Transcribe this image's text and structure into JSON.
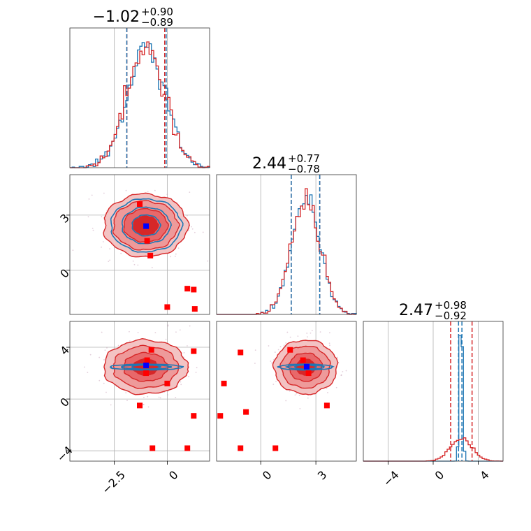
{
  "chart_data": [
    {
      "panel": "hist-param-1",
      "type": "histogram",
      "title": {
        "median": "−1.02",
        "plus": "+0.90",
        "minus": "−0.89"
      },
      "xlim": [
        -4.6,
        2.0
      ],
      "xticks": [
        -2.5,
        0.0
      ],
      "quantile_lines": {
        "red": [
          -1.91,
          -0.12
        ],
        "blue": [
          -1.91,
          -0.05
        ]
      },
      "series": [
        {
          "name": "",
          "color": "#1f77b4",
          "center": -1.0,
          "sigma": 0.9
        },
        {
          "name": "",
          "color": "#d62728",
          "center": -1.02,
          "sigma": 0.89
        }
      ],
      "grid": true
    },
    {
      "panel": "hist-param-2",
      "type": "histogram",
      "title": {
        "median": "2.44",
        "plus": "+0.77",
        "minus": "−0.78"
      },
      "xlim": [
        -2.4,
        5.2
      ],
      "xticks": [
        0,
        3
      ],
      "quantile_lines": {
        "red": [
          1.66,
          3.21
        ],
        "blue": [
          1.66,
          3.21
        ]
      },
      "series": [
        {
          "name": "",
          "color": "#1f77b4",
          "center": 2.44,
          "sigma": 0.77
        },
        {
          "name": "",
          "color": "#d62728",
          "center": 2.44,
          "sigma": 0.78
        }
      ],
      "grid": true
    },
    {
      "panel": "hist-param-3",
      "type": "histogram",
      "title": {
        "median": "2.47",
        "plus": "+0.98",
        "minus": "−0.92"
      },
      "xlim": [
        -6.2,
        6.2
      ],
      "xticks": [
        -4,
        0,
        4
      ],
      "quantile_lines": {
        "red": [
          1.55,
          3.45
        ],
        "blue": [
          2.25,
          2.55
        ]
      },
      "series": [
        {
          "name": "",
          "color": "#1f77b4",
          "center": 2.47,
          "sigma": 0.12
        },
        {
          "name": "",
          "color": "#d62728",
          "center": 2.47,
          "sigma": 0.95
        }
      ],
      "grid": true
    },
    {
      "panel": "corner-param1-param2",
      "type": "scatter",
      "xlim": [
        -4.6,
        2.0
      ],
      "ylim": [
        -2.4,
        5.2
      ],
      "yticks": [
        0,
        3
      ],
      "grid": true,
      "contours": {
        "red": {
          "center": [
            -1.02,
            2.44
          ],
          "sigma": [
            0.9,
            0.78
          ]
        },
        "blue": {
          "center": [
            -1.0,
            2.44
          ],
          "sigma": [
            0.88,
            0.76
          ]
        }
      },
      "red_markers": [
        [
          -1.3,
          3.6
        ],
        [
          -0.95,
          1.6
        ],
        [
          -0.8,
          0.8
        ],
        [
          0.95,
          -1.0
        ],
        [
          1.25,
          -1.05
        ],
        [
          0.0,
          -2.0
        ],
        [
          1.3,
          -2.1
        ]
      ],
      "blue_marker": [
        -1.0,
        2.4
      ]
    },
    {
      "panel": "corner-param1-param3",
      "type": "scatter",
      "xlim": [
        -4.6,
        2.0
      ],
      "ylim": [
        -4.8,
        6.0
      ],
      "yticks": [
        -4,
        0,
        4
      ],
      "grid": true,
      "contours": {
        "red": {
          "center": [
            -1.02,
            2.47
          ],
          "sigma": [
            0.9,
            0.95
          ]
        },
        "blue": {
          "center": [
            -1.0,
            2.47
          ],
          "sigma": [
            0.9,
            0.12
          ]
        }
      },
      "red_markers": [
        [
          -0.75,
          3.8
        ],
        [
          -0.95,
          3.0
        ],
        [
          -1.0,
          2.0
        ],
        [
          0.0,
          1.2
        ],
        [
          -1.3,
          -0.5
        ],
        [
          1.25,
          3.7
        ],
        [
          1.25,
          -1.3
        ],
        [
          -0.7,
          -3.8
        ],
        [
          0.95,
          -3.8
        ]
      ],
      "blue_marker": [
        -1.0,
        2.6
      ]
    },
    {
      "panel": "corner-param2-param3",
      "type": "scatter",
      "xlim": [
        -2.4,
        5.2
      ],
      "ylim": [
        -4.8,
        6.0
      ],
      "xticks": [
        0,
        3
      ],
      "grid": true,
      "contours": {
        "red": {
          "center": [
            2.44,
            2.47
          ],
          "sigma": [
            0.78,
            0.95
          ]
        },
        "blue": {
          "center": [
            2.44,
            2.47
          ],
          "sigma": [
            0.77,
            0.12
          ]
        }
      },
      "red_markers": [
        [
          1.6,
          3.8
        ],
        [
          2.3,
          3.0
        ],
        [
          2.6,
          2.0
        ],
        [
          -1.1,
          3.6
        ],
        [
          -2.0,
          1.2
        ],
        [
          3.6,
          -0.5
        ],
        [
          -0.8,
          -1.0
        ],
        [
          -2.2,
          -1.3
        ],
        [
          -1.1,
          -3.8
        ],
        [
          0.8,
          -3.8
        ]
      ],
      "blue_marker": [
        2.5,
        2.5
      ]
    }
  ],
  "colors": {
    "red": "#d62728",
    "blue": "#1f77b4",
    "marker_red": "#ff0000",
    "marker_blue": "#0000ff"
  }
}
